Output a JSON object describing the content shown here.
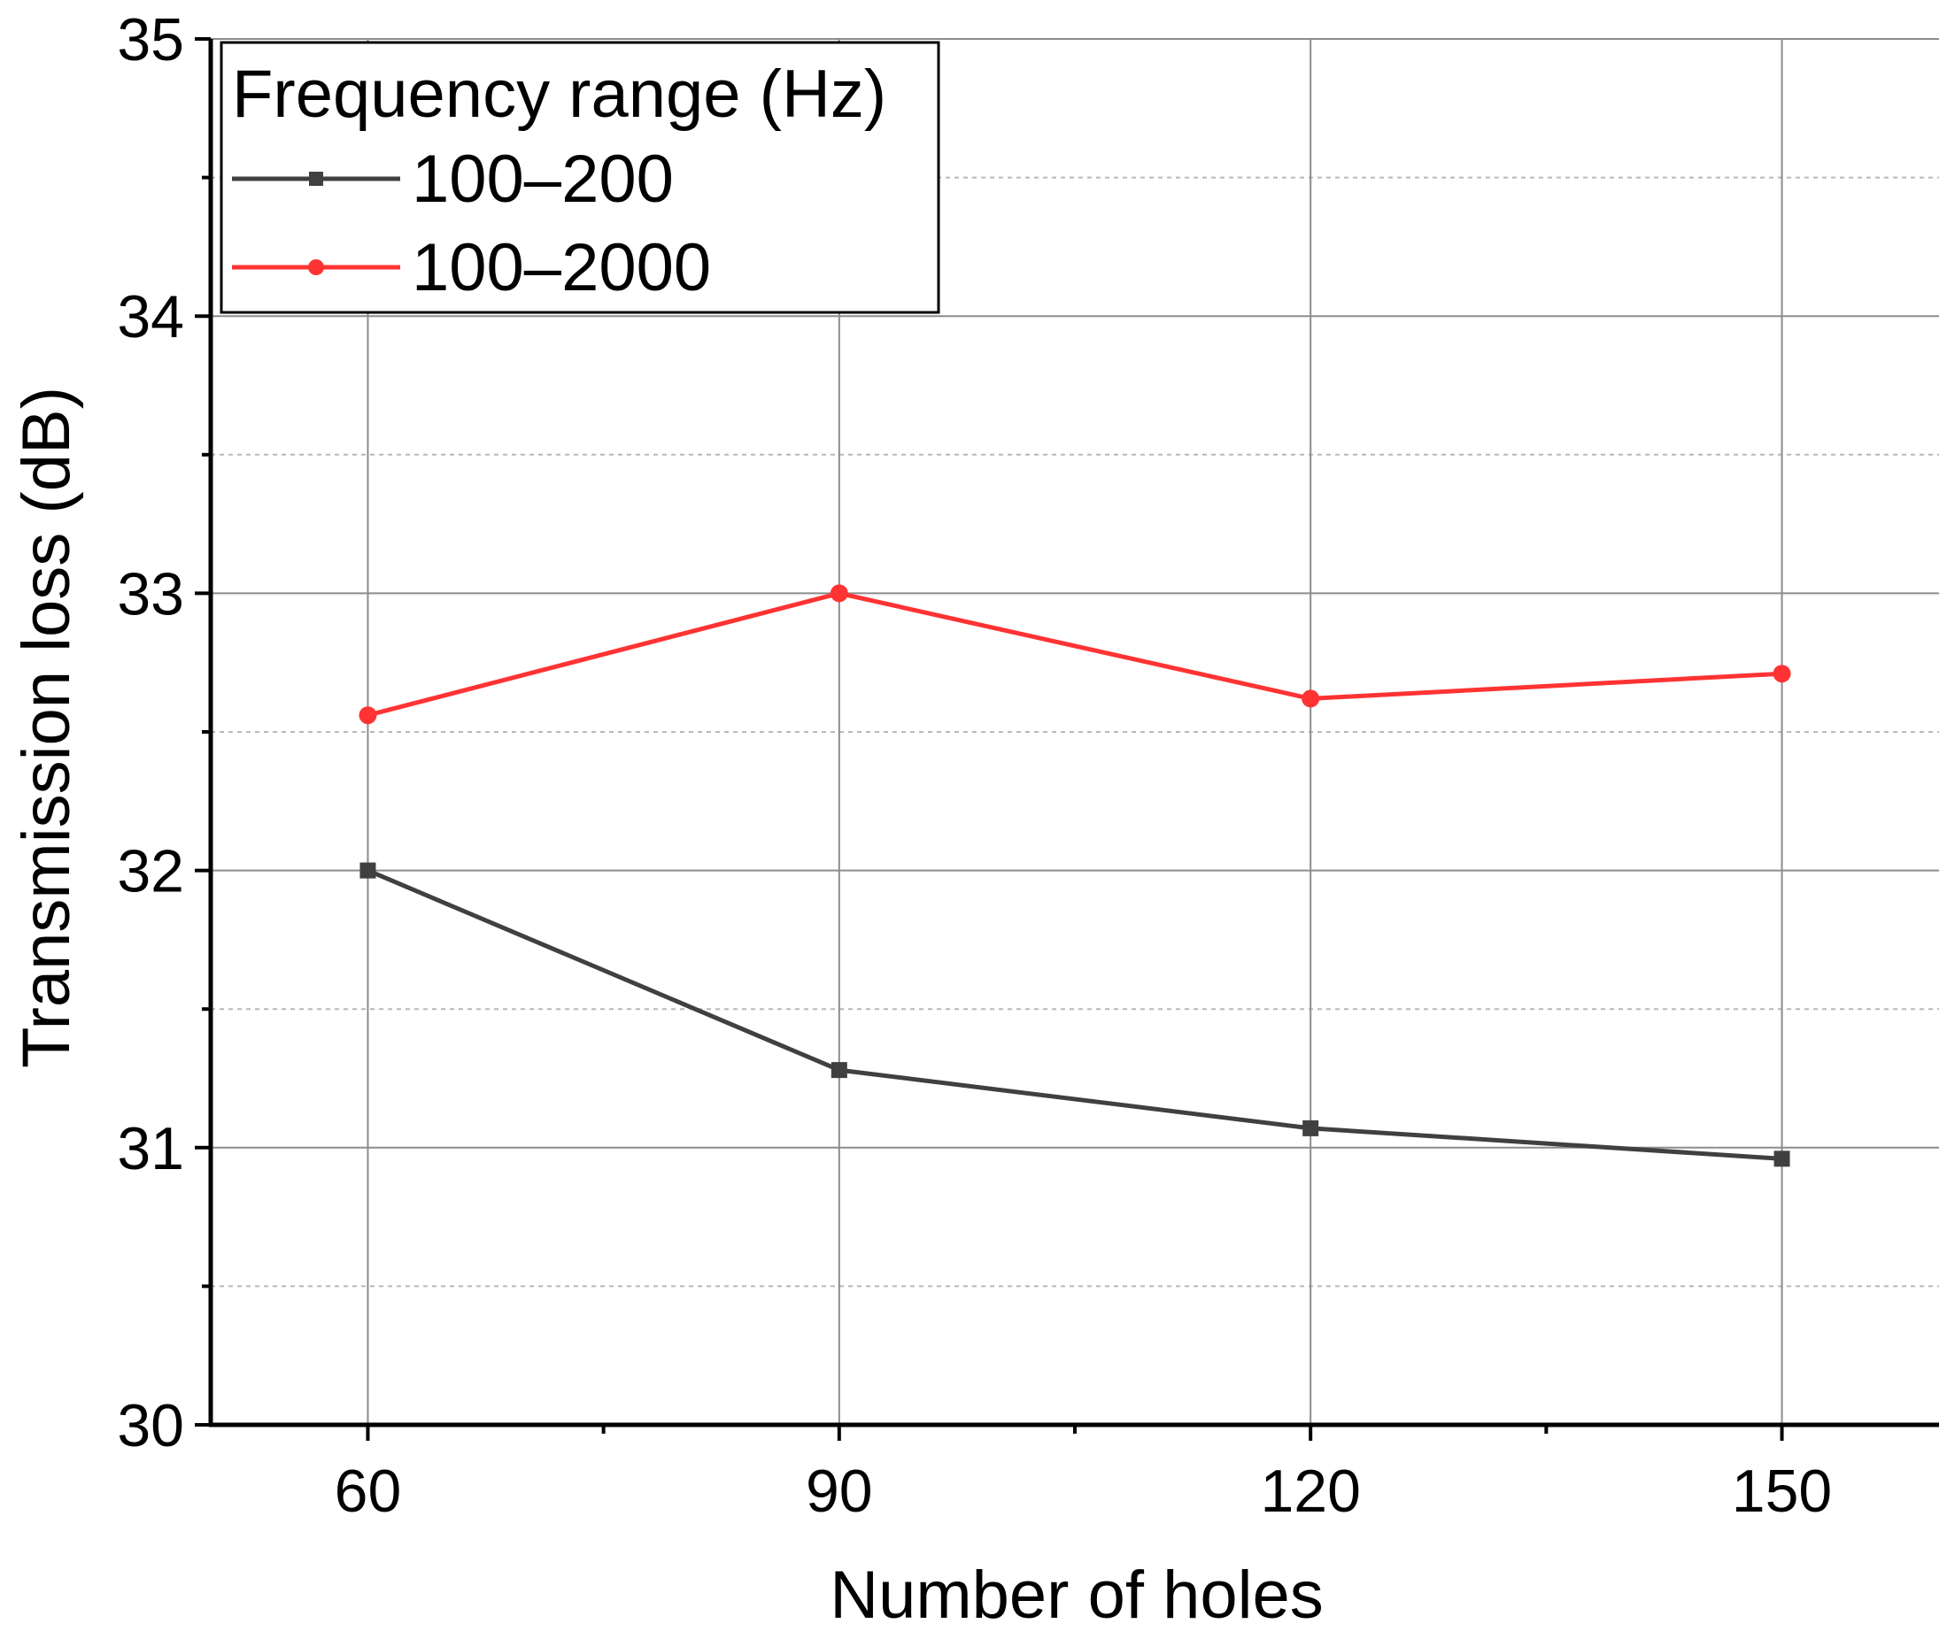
{
  "chart_data": {
    "type": "line",
    "xlabel": "Number of holes",
    "ylabel": "Transmission loss (dB)",
    "x": [
      60,
      90,
      120,
      150
    ],
    "xlim": [
      50,
      160
    ],
    "ylim": [
      30,
      35
    ],
    "xticks": [
      "60",
      "90",
      "120",
      "150"
    ],
    "yticks": [
      "30",
      "31",
      "32",
      "33",
      "34",
      "35"
    ],
    "grid": true,
    "legend": {
      "title": "Frequency range (Hz)",
      "placement": "top-left"
    },
    "series": [
      {
        "name": "100–200",
        "color": "#404040",
        "marker": "square",
        "values": [
          32.0,
          31.28,
          31.07,
          30.96
        ]
      },
      {
        "name": "100–2000",
        "color": "#ff3333",
        "marker": "circle",
        "values": [
          32.56,
          33.0,
          32.62,
          32.71
        ]
      }
    ]
  }
}
